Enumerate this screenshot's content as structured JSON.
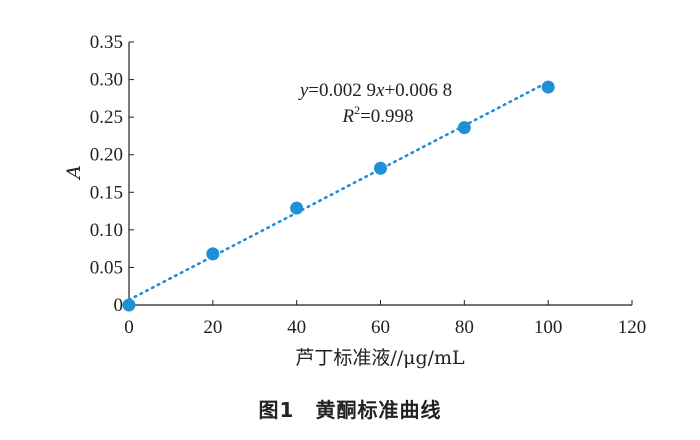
{
  "chart_data": {
    "type": "scatter",
    "x": [
      0,
      20,
      40,
      60,
      80,
      100
    ],
    "y": [
      0.0,
      0.068,
      0.129,
      0.182,
      0.236,
      0.29
    ],
    "xlim": [
      0,
      120
    ],
    "ylim": [
      0,
      0.35
    ],
    "xticks": [
      "0",
      "20",
      "40",
      "60",
      "80",
      "100",
      "120"
    ],
    "yticks": [
      "0",
      "0.05",
      "0.10",
      "0.15",
      "0.20",
      "0.25",
      "0.30",
      "0.35"
    ],
    "xlabel": "芦丁标准液//μg/mL",
    "ylabel": "A",
    "fit": {
      "slope": 0.0029,
      "intercept": 0.0068
    },
    "equation": {
      "y_prefix": "y",
      "eq_mid": "=0.002 9",
      "x_var": "x",
      "eq_tail": "+0.006 8"
    },
    "r2": {
      "r_letter": "R",
      "sup": "2",
      "value": "=0.998"
    },
    "marker_color": "#1f8fd6",
    "trendline_color": "#1f8fd6",
    "trendline_style": "dotted",
    "grid": false
  },
  "caption": "图1　黄酮标准曲线"
}
